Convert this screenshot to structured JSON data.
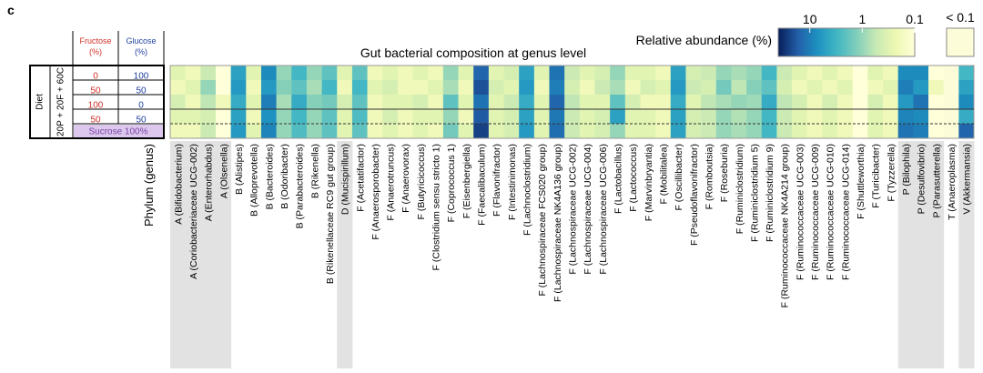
{
  "panel_label": "c",
  "table": {
    "headers": [
      "Fructose\n(%)",
      "Glucose\n(%)"
    ],
    "rows": [
      [
        "0",
        "100"
      ],
      [
        "50",
        "50"
      ],
      [
        "100",
        "0"
      ],
      [
        "50",
        "50"
      ]
    ],
    "sucrose": "Sucrose 100%",
    "diet": "Diet",
    "diet_formula": "20P + 20F + 60C"
  },
  "chart_data": {
    "type": "heatmap",
    "title": "Gut bacterial composition at genus level",
    "x_label": "Phylum (genus)",
    "legend_title": "Relative abundance (%)",
    "log_scale": true,
    "clim": [
      40,
      0.1
    ],
    "colorbar_ticks": [
      10,
      1,
      0.1
    ],
    "below_label": "< 0.1",
    "colormap": [
      "#081d58",
      "#225ea8",
      "#1d91c0",
      "#41b6c4",
      "#7fcdbb",
      "#c7e9b4",
      "#edf8b1",
      "#ffffd9"
    ],
    "below_color": "#fdfcd8",
    "categories": [
      "A (Bifidobacterium)",
      "A (Coriobacteriaceae UCG-002)",
      "A (Enterorhabdus)",
      "A (Olsenella)",
      "B (Alistipes)",
      "B (Alloprevotella)",
      "B (Bacteroides)",
      "B (Odoribacter)",
      "B (Parabacteroides)",
      "B (Rikenella)",
      "B (Rikenellaceae RC9 gut group)",
      "D (Mucispirillum)",
      "F (Acetatifactor)",
      "F (Anaerosporobacter)",
      "F (Anaerotruncus)",
      "F (Anaerovorax)",
      "F (Butyricicoccus)",
      "F (Clostridium sensu stricto 1)",
      "F (Coprococcus 1)",
      "F (Eisenbergiella)",
      "F (Faecalibaculum)",
      "F (Flavonifractor)",
      "F (Intestinimonas)",
      "F (Lachnoclostridium)",
      "F (Lachnospiraceae FCS020 group)",
      "F (Lachnospiraceae NK4A136 group)",
      "F (Lachnospiraceae UCG-002)",
      "F (Lachnospiraceae UCG-004)",
      "F (Lachnospiraceae UCG-006)",
      "F (Lactobacillus)",
      "F (Lactococcus)",
      "F (Marvinbryantia)",
      "F (Mobilitalea)",
      "F (Oscillibacter)",
      "F (Pseudoflavonifractor)",
      "F (Romboutsia)",
      "F (Roseburia)",
      "F (Ruminiclostridium)",
      "F (Ruminiclostridium 5)",
      "F (Ruminiclostridium 9)",
      "F (Ruminococcaceae NK4A214 group)",
      "F (Ruminococcaceae UCG-003)",
      "F (Ruminococcaceae UCG-009)",
      "F (Ruminococcaceae UCG-010)",
      "F (Ruminococcaceae UCG-014)",
      "F (Shuttleworthia)",
      "F (Turicibacter)",
      "F (Tyzzerella)",
      "P (Bilophila)",
      "P (Desulfovibrio)",
      "P (Parasutterella)",
      "T (Anaeroplasma)",
      "V (Akkermansia)"
    ],
    "values": [
      [
        0.3,
        0.2,
        0.5,
        0.1,
        5,
        0.3,
        8,
        1,
        3,
        1,
        2,
        0.3,
        2,
        0.2,
        0.3,
        0.2,
        0.3,
        0.2,
        1,
        0.3,
        15,
        0.3,
        0.4,
        5,
        0.3,
        12,
        0.5,
        0.3,
        0.4,
        1,
        0.3,
        0.3,
        0.2,
        5,
        0.4,
        0.5,
        1,
        0.8,
        1,
        3,
        0.5,
        0.3,
        0.2,
        0.3,
        0.2,
        0.1,
        0.3,
        0.2,
        8,
        8,
        0.1,
        0.05,
        3
      ],
      [
        0.2,
        0.3,
        1,
        0.1,
        6,
        0.2,
        6,
        1.2,
        2,
        0.8,
        3,
        0.2,
        3,
        0.3,
        0.4,
        0.2,
        0.2,
        0.3,
        0.8,
        0.2,
        20,
        0.4,
        0.3,
        6,
        0.2,
        10,
        0.4,
        0.2,
        0.5,
        0.8,
        0.2,
        0.4,
        0.3,
        6,
        0.5,
        0.4,
        1.5,
        0.6,
        1.2,
        2,
        0.4,
        0.2,
        0.3,
        0.2,
        0.3,
        0.1,
        0.2,
        0.3,
        10,
        6,
        0.2,
        0.05,
        5
      ],
      [
        0.4,
        0.2,
        0.6,
        0.2,
        4,
        0.3,
        10,
        0.8,
        4,
        1.2,
        1.5,
        0.4,
        2,
        0.2,
        0.3,
        0.3,
        0.4,
        0.2,
        2,
        0.3,
        12,
        0.3,
        0.5,
        4,
        0.3,
        15,
        0.6,
        0.3,
        0.3,
        2,
        0.4,
        0.2,
        0.2,
        4,
        0.3,
        0.6,
        0.8,
        1,
        0.9,
        4,
        0.6,
        0.4,
        0.2,
        0.4,
        0.2,
        0.1,
        0.4,
        0.2,
        6,
        12,
        0.1,
        0.05,
        8
      ],
      [
        0.3,
        0.3,
        0.4,
        0.1,
        5,
        0.2,
        7,
        1,
        3,
        1,
        2,
        0.3,
        2.5,
        0.2,
        0.4,
        0.2,
        0.3,
        0.3,
        1,
        0.2,
        18,
        0.3,
        0.4,
        5,
        0.3,
        11,
        0.5,
        0.3,
        0.4,
        5,
        0.3,
        0.3,
        0.2,
        5,
        0.4,
        0.5,
        1,
        0.7,
        1,
        3,
        0.5,
        0.3,
        0.2,
        0.3,
        0.2,
        0.1,
        0.3,
        0.2,
        9,
        8,
        0.1,
        0.05,
        4
      ],
      [
        0.2,
        0.2,
        0.5,
        0.1,
        6,
        0.3,
        9,
        1,
        2.5,
        1,
        2,
        0.3,
        2,
        0.2,
        0.3,
        0.2,
        0.3,
        0.2,
        1.5,
        0.3,
        25,
        0.3,
        0.4,
        6,
        0.3,
        13,
        0.5,
        0.3,
        0.4,
        1,
        0.3,
        0.3,
        0.2,
        5,
        0.4,
        0.5,
        1,
        0.8,
        1,
        3,
        0.5,
        0.3,
        0.2,
        0.3,
        0.2,
        0.1,
        0.3,
        0.2,
        12,
        10,
        0.1,
        0.05,
        15
      ]
    ]
  }
}
